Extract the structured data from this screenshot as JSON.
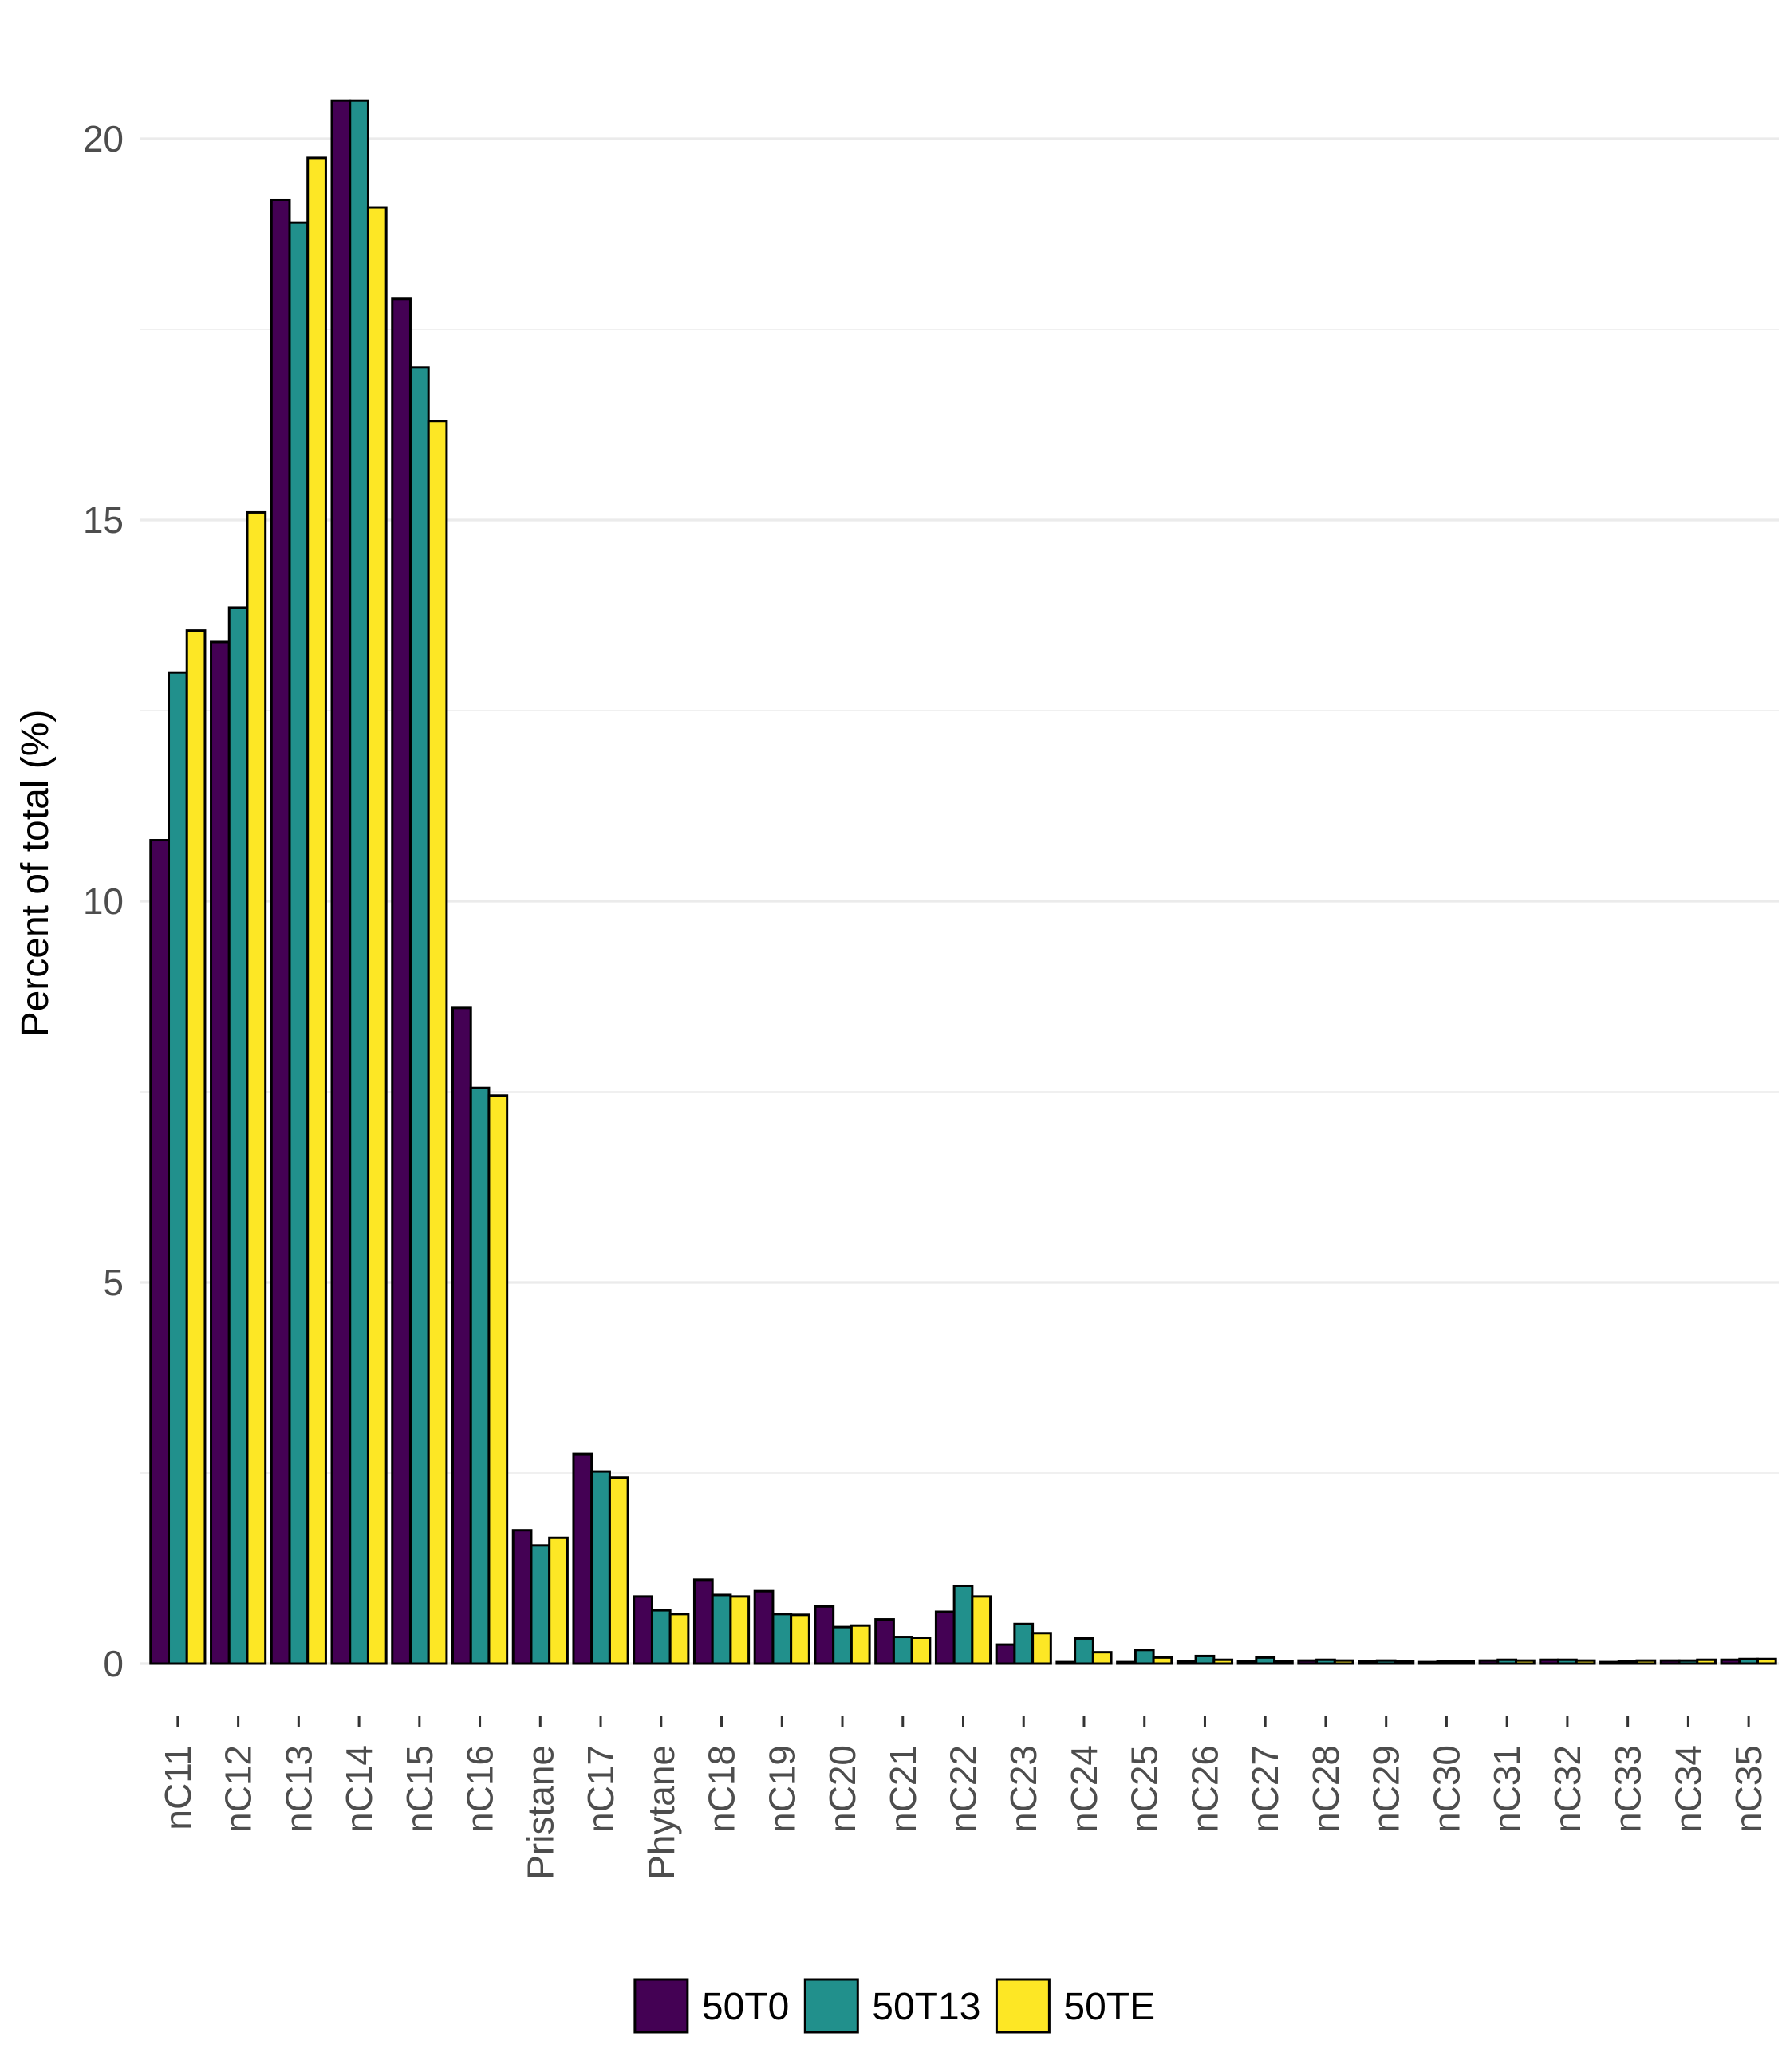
{
  "chart_data": {
    "type": "bar",
    "ylabel": "Percent of total (%)",
    "xlabel": "",
    "ylim": [
      -0.6,
      21.2
    ],
    "yticks": [
      0,
      5,
      10,
      15,
      20
    ],
    "grid": true,
    "legend_position": "bottom",
    "categories": [
      "nC11",
      "nC12",
      "nC13",
      "nC14",
      "nC15",
      "nC16",
      "Pristane",
      "nC17",
      "Phytane",
      "nC18",
      "nC19",
      "nC20",
      "nC21",
      "nC22",
      "nC23",
      "nC24",
      "nC25",
      "nC26",
      "nC27",
      "nC28",
      "nC29",
      "nC30",
      "nC31",
      "nC32",
      "nC33",
      "nC34",
      "nC35"
    ],
    "series": [
      {
        "name": "50T0",
        "color": "#440154",
        "values": [
          10.8,
          13.4,
          19.2,
          20.5,
          17.9,
          8.6,
          1.75,
          2.75,
          0.88,
          1.1,
          0.95,
          0.75,
          0.58,
          0.68,
          0.25,
          0.02,
          0.02,
          0.03,
          0.03,
          0.04,
          0.03,
          0.02,
          0.04,
          0.05,
          0.02,
          0.04,
          0.05
        ]
      },
      {
        "name": "50T13",
        "color": "#21908C",
        "values": [
          13.0,
          13.85,
          18.9,
          20.5,
          17.0,
          7.55,
          1.55,
          2.52,
          0.7,
          0.9,
          0.65,
          0.48,
          0.35,
          1.02,
          0.52,
          0.33,
          0.18,
          0.1,
          0.08,
          0.05,
          0.04,
          0.03,
          0.05,
          0.05,
          0.03,
          0.04,
          0.06
        ]
      },
      {
        "name": "50TE",
        "color": "#FDE725",
        "values": [
          13.55,
          15.1,
          19.75,
          19.1,
          16.3,
          7.45,
          1.65,
          2.44,
          0.65,
          0.88,
          0.64,
          0.5,
          0.34,
          0.88,
          0.4,
          0.15,
          0.08,
          0.05,
          0.03,
          0.04,
          0.03,
          0.03,
          0.04,
          0.04,
          0.04,
          0.05,
          0.06
        ]
      }
    ]
  }
}
